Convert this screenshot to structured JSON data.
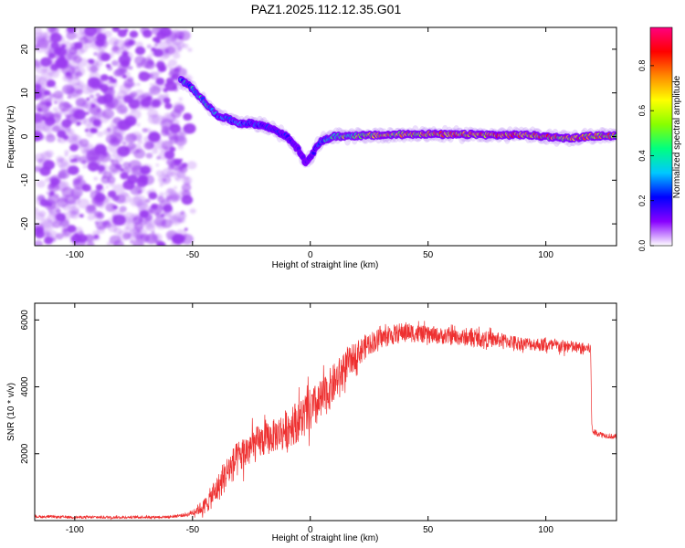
{
  "title": "PAZ1.2025.112.12.35.G01",
  "colors": {
    "snr_line": "#ee3030",
    "spectrogram_noise": "#9b3cf0",
    "colormap": [
      "#ffffff",
      "#8800ff",
      "#0000ff",
      "#00c8ff",
      "#00ff80",
      "#88ff00",
      "#ffff00",
      "#ff8800",
      "#ff0000",
      "#ff0080"
    ]
  },
  "chart_data": [
    {
      "type": "heatmap",
      "xlabel": "Height of straight line (km)",
      "ylabel": "Frequency (Hz)",
      "xlim": [
        -117,
        130
      ],
      "ylim": [
        -25,
        25
      ],
      "xticks": [
        -100,
        -50,
        0,
        50,
        100
      ],
      "yticks": [
        -20,
        -10,
        0,
        10,
        20
      ],
      "noise_region_x": [
        -117,
        -52
      ],
      "ridge": {
        "x": [
          -55,
          -50,
          -45,
          -40,
          -35,
          -30,
          -25,
          -20,
          -15,
          -10,
          -5,
          -2,
          0,
          3,
          5,
          10,
          20,
          30,
          40,
          50,
          60,
          70,
          80,
          90,
          100,
          110,
          120,
          130
        ],
        "y": [
          13,
          11,
          8,
          5,
          4,
          3,
          3,
          2.5,
          1.5,
          0,
          -3,
          -6,
          -5,
          -2,
          -1,
          0,
          0.2,
          0.3,
          0.5,
          0.6,
          0.4,
          0.5,
          0.3,
          0.4,
          0,
          -0.4,
          0.1,
          0.2
        ],
        "amplitude": [
          0.4,
          0.45,
          0.45,
          0.4,
          0.35,
          0.35,
          0.3,
          0.3,
          0.25,
          0.25,
          0.2,
          0.2,
          0.25,
          0.3,
          0.4,
          0.55,
          0.7,
          0.8,
          0.85,
          0.88,
          0.9,
          0.9,
          0.92,
          0.9,
          0.88,
          0.9,
          0.9,
          0.88
        ]
      },
      "colorbar": {
        "label": "Normalized spectral amplitude",
        "range": [
          0,
          0.97
        ],
        "ticks": [
          0.0,
          0.2,
          0.4,
          0.6,
          0.8
        ],
        "tick_labels": [
          "0.0",
          "0.2",
          "0.4",
          "0.6",
          "0.8"
        ]
      }
    },
    {
      "type": "line",
      "xlabel": "Height of straight line (km)",
      "ylabel": "SNR (10 * v/v)",
      "xlim": [
        -117,
        130
      ],
      "ylim": [
        0,
        6500
      ],
      "xticks": [
        -100,
        -50,
        0,
        50,
        100
      ],
      "yticks": [
        2000,
        4000,
        6000
      ],
      "series": [
        {
          "x": [
            -117,
            -100,
            -80,
            -60,
            -52,
            -48,
            -45,
            -42,
            -38,
            -35,
            -30,
            -25,
            -20,
            -15,
            -10,
            -5,
            0,
            5,
            10,
            15,
            20,
            25,
            30,
            35,
            40,
            45,
            50,
            60,
            70,
            80,
            90,
            100,
            110,
            115,
            119,
            119.5,
            120,
            125,
            130
          ],
          "y": [
            120,
            100,
            100,
            110,
            180,
            320,
            420,
            700,
            1100,
            1500,
            1900,
            2200,
            2400,
            2550,
            2750,
            3000,
            3250,
            3600,
            4100,
            4600,
            5000,
            5300,
            5450,
            5550,
            5650,
            5600,
            5550,
            5500,
            5450,
            5400,
            5300,
            5250,
            5200,
            5150,
            5150,
            2900,
            2650,
            2550,
            2500
          ],
          "noise": [
            40,
            40,
            40,
            40,
            60,
            150,
            250,
            350,
            450,
            500,
            550,
            550,
            500,
            500,
            600,
            650,
            700,
            650,
            600,
            500,
            400,
            350,
            300,
            300,
            300,
            280,
            250,
            250,
            250,
            230,
            200,
            200,
            200,
            180,
            150,
            120,
            100,
            80,
            80
          ]
        }
      ]
    }
  ]
}
